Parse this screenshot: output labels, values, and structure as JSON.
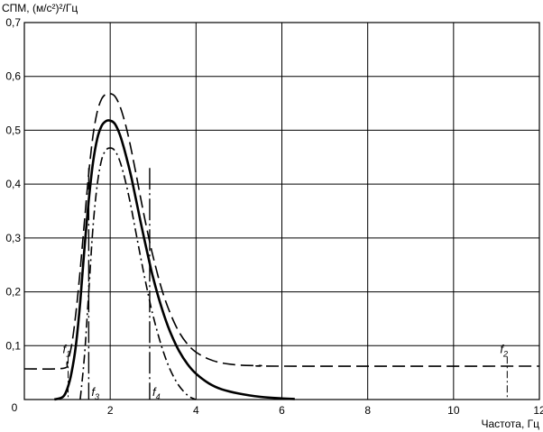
{
  "chart_data": {
    "type": "line",
    "ylabel": "СПМ, (м/с²)²/Гц",
    "xlabel": "Частота, Гц",
    "xlim": [
      0,
      12
    ],
    "ylim": [
      0,
      0.7
    ],
    "x_ticks": [
      0,
      2,
      4,
      6,
      8,
      10,
      12
    ],
    "y_ticks": [
      0,
      0.1,
      0.2,
      0.3,
      0.4,
      0.5,
      0.6,
      0.7
    ],
    "x_tick_labels": [
      "0",
      "2",
      "4",
      "6",
      "8",
      "10",
      "12"
    ],
    "y_tick_labels": [
      "0,1",
      "0,2",
      "0,3",
      "0,4",
      "0,5",
      "0,6",
      "0,7"
    ],
    "origin_label": "0",
    "grid": true,
    "series": [
      {
        "style": "long-dash",
        "color": "#000000",
        "x": [
          0,
          0.9,
          1.0,
          1.1,
          1.2,
          1.3,
          1.4,
          1.5,
          1.6,
          1.7,
          1.8,
          1.9,
          2.0,
          2.1,
          2.2,
          2.3,
          2.4,
          2.5,
          2.6,
          2.7,
          2.8,
          2.9,
          3.0,
          3.2,
          3.4,
          3.6,
          3.8,
          4.0,
          4.3,
          4.6,
          5.0,
          5.5,
          6.0,
          12.0
        ],
        "y": [
          0.057,
          0.058,
          0.07,
          0.1,
          0.16,
          0.24,
          0.33,
          0.42,
          0.49,
          0.535,
          0.558,
          0.567,
          0.568,
          0.564,
          0.55,
          0.527,
          0.497,
          0.46,
          0.42,
          0.378,
          0.338,
          0.3,
          0.265,
          0.205,
          0.16,
          0.126,
          0.103,
          0.088,
          0.075,
          0.068,
          0.064,
          0.063,
          0.062,
          0.062
        ]
      },
      {
        "style": "solid",
        "color": "#000000",
        "x": [
          0.7,
          0.9,
          1.0,
          1.1,
          1.2,
          1.3,
          1.4,
          1.5,
          1.6,
          1.7,
          1.8,
          1.9,
          2.0,
          2.1,
          2.2,
          2.3,
          2.4,
          2.5,
          2.6,
          2.7,
          2.8,
          2.9,
          3.0,
          3.2,
          3.4,
          3.6,
          3.8,
          4.0,
          4.3,
          4.6,
          5.0,
          5.5,
          6.0,
          6.3
        ],
        "y": [
          0.0,
          0.005,
          0.02,
          0.05,
          0.1,
          0.18,
          0.28,
          0.37,
          0.44,
          0.485,
          0.508,
          0.517,
          0.518,
          0.513,
          0.497,
          0.473,
          0.443,
          0.41,
          0.372,
          0.333,
          0.296,
          0.26,
          0.226,
          0.17,
          0.125,
          0.091,
          0.066,
          0.048,
          0.03,
          0.019,
          0.011,
          0.005,
          0.002,
          0.001
        ]
      },
      {
        "style": "dash-dot",
        "color": "#000000",
        "x": [
          1.3,
          1.4,
          1.5,
          1.6,
          1.7,
          1.8,
          1.9,
          2.0,
          2.1,
          2.2,
          2.3,
          2.4,
          2.5,
          2.6,
          2.7,
          2.8,
          2.9,
          3.0,
          3.2,
          3.4,
          3.6,
          3.8,
          3.9,
          4.0
        ],
        "y": [
          0.0,
          0.08,
          0.2,
          0.32,
          0.4,
          0.445,
          0.463,
          0.467,
          0.463,
          0.448,
          0.423,
          0.39,
          0.352,
          0.31,
          0.268,
          0.228,
          0.19,
          0.155,
          0.098,
          0.055,
          0.026,
          0.008,
          0.003,
          0.0
        ]
      }
    ],
    "markers": [
      {
        "label": "f",
        "sub": "1",
        "x": 1.02,
        "y_top": 0.09,
        "style": "dash-dot"
      },
      {
        "label": "f",
        "sub": "3",
        "x": 1.5,
        "y_top": 0.43,
        "style": "solid-dash"
      },
      {
        "label": "f",
        "sub": "4",
        "x": 2.92,
        "y_top": 0.43,
        "style": "solid-dash"
      },
      {
        "label": "f",
        "sub": "2",
        "x": 11.25,
        "y_top": 0.09,
        "style": "dash-dot"
      }
    ]
  }
}
